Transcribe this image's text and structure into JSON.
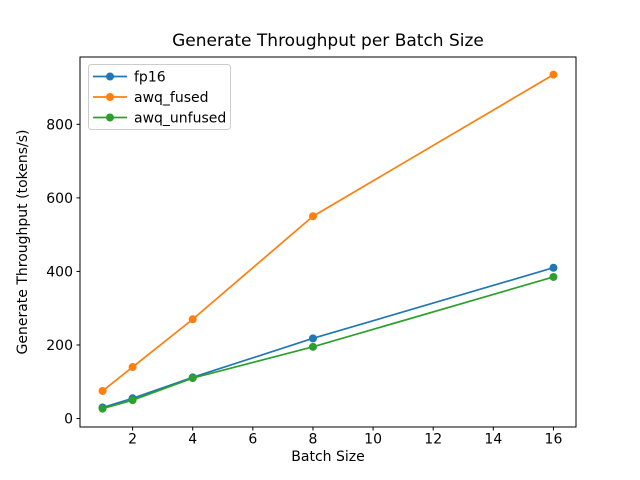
{
  "chart_data": {
    "type": "line",
    "title": "Generate Throughput per Batch Size",
    "xlabel": "Batch Size",
    "ylabel": "Generate Throughput (tokens/s)",
    "x": [
      1,
      2,
      4,
      8,
      16
    ],
    "series": [
      {
        "name": "fp16",
        "color": "#1f77b4",
        "values": [
          30,
          55,
          112,
          218,
          410
        ]
      },
      {
        "name": "awq_fused",
        "color": "#ff7f0e",
        "values": [
          75,
          140,
          270,
          550,
          935
        ]
      },
      {
        "name": "awq_unfused",
        "color": "#2ca02c",
        "values": [
          27,
          50,
          110,
          195,
          385
        ]
      }
    ],
    "xticks": [
      2,
      4,
      6,
      8,
      10,
      12,
      14,
      16
    ],
    "yticks": [
      0,
      200,
      400,
      600,
      800
    ],
    "xlim": [
      0.25,
      16.75
    ],
    "ylim": [
      -23,
      983
    ],
    "grid": false,
    "marker": "circle",
    "legend_position": "upper left",
    "background_color": "#ffffff",
    "spine_color": "#000000",
    "legend_border_color": "#cccccc"
  }
}
